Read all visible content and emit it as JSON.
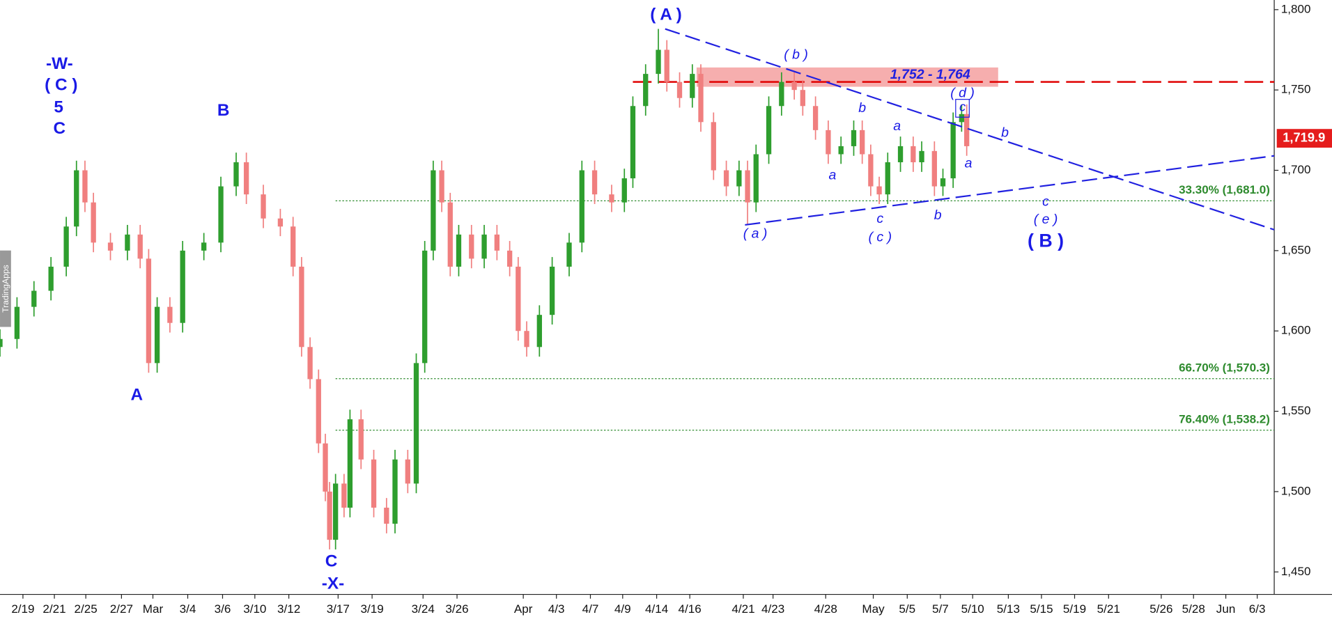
{
  "chart_data": {
    "type": "candlestick",
    "watermark": "TradingApps",
    "up_color": "#2e9e2e",
    "down_color": "#f07f7f",
    "x": [
      0,
      2,
      4,
      6,
      7.8,
      9,
      10,
      11,
      13,
      15,
      16.5,
      17.5,
      18.5,
      20,
      21.5,
      24,
      26,
      27.8,
      29,
      31,
      33,
      34.5,
      35.5,
      36.5,
      37.5,
      38.3,
      38.8,
      39.5,
      40.5,
      41.2,
      42.5,
      44,
      45.5,
      46.5,
      48,
      49,
      50,
      51,
      52,
      53,
      54,
      55.5,
      57,
      58.5,
      60,
      61,
      62,
      63.5,
      65,
      67,
      68.5,
      70,
      72,
      73.5,
      74.5,
      76,
      77.5,
      78.5,
      80,
      81.5,
      82.5,
      84,
      85.5,
      87,
      88,
      89,
      90.5,
      92,
      93.5,
      94.5,
      96,
      97.5,
      99,
      100.5,
      101.5,
      102.5,
      103.5,
      104.5,
      106,
      107.5,
      108.5,
      110,
      111,
      112.2,
      113.2,
      113.8
    ],
    "open": [
      1590,
      1595,
      1615,
      1625,
      1640,
      1665,
      1700,
      1680,
      1655,
      1650,
      1660,
      1645,
      1580,
      1615,
      1605,
      1650,
      1655,
      1690,
      1705,
      1685,
      1670,
      1665,
      1640,
      1590,
      1570,
      1530,
      1500,
      1470,
      1505,
      1490,
      1545,
      1520,
      1490,
      1480,
      1520,
      1505,
      1580,
      1650,
      1700,
      1680,
      1640,
      1660,
      1645,
      1660,
      1650,
      1640,
      1600,
      1590,
      1610,
      1640,
      1655,
      1700,
      1685,
      1680,
      1695,
      1740,
      1760,
      1775,
      1755,
      1745,
      1760,
      1730,
      1700,
      1690,
      1700,
      1680,
      1710,
      1740,
      1755,
      1750,
      1740,
      1725,
      1710,
      1715,
      1725,
      1710,
      1690,
      1685,
      1705,
      1715,
      1705,
      1712,
      1690,
      1695,
      1730,
      1735
    ],
    "high": [
      1601,
      1621,
      1631,
      1646,
      1671,
      1706,
      1706,
      1686,
      1661,
      1666,
      1666,
      1651,
      1621,
      1621,
      1656,
      1661,
      1696,
      1711,
      1711,
      1691,
      1676,
      1671,
      1646,
      1596,
      1576,
      1536,
      1506,
      1511,
      1511,
      1551,
      1551,
      1526,
      1496,
      1526,
      1526,
      1586,
      1656,
      1706,
      1706,
      1686,
      1666,
      1666,
      1666,
      1666,
      1656,
      1646,
      1606,
      1616,
      1646,
      1661,
      1706,
      1706,
      1691,
      1701,
      1746,
      1766,
      1788,
      1781,
      1761,
      1766,
      1766,
      1736,
      1706,
      1706,
      1706,
      1716,
      1746,
      1761,
      1761,
      1756,
      1746,
      1731,
      1721,
      1731,
      1731,
      1716,
      1696,
      1711,
      1721,
      1721,
      1718,
      1718,
      1701,
      1736,
      1741,
      1741
    ],
    "low": [
      1584,
      1589,
      1609,
      1619,
      1634,
      1659,
      1674,
      1649,
      1644,
      1644,
      1639,
      1574,
      1574,
      1599,
      1599,
      1644,
      1649,
      1684,
      1679,
      1664,
      1659,
      1634,
      1584,
      1564,
      1524,
      1494,
      1464,
      1464,
      1484,
      1484,
      1514,
      1484,
      1474,
      1474,
      1499,
      1499,
      1574,
      1644,
      1674,
      1634,
      1634,
      1639,
      1639,
      1644,
      1634,
      1594,
      1584,
      1584,
      1604,
      1634,
      1649,
      1679,
      1674,
      1674,
      1689,
      1734,
      1754,
      1749,
      1739,
      1739,
      1724,
      1694,
      1684,
      1684,
      1666,
      1674,
      1704,
      1734,
      1744,
      1734,
      1719,
      1704,
      1704,
      1709,
      1704,
      1684,
      1679,
      1679,
      1699,
      1699,
      1699,
      1684,
      1684,
      1689,
      1724,
      1709
    ],
    "close": [
      1595,
      1615,
      1625,
      1640,
      1665,
      1700,
      1680,
      1655,
      1650,
      1660,
      1645,
      1580,
      1615,
      1605,
      1650,
      1655,
      1690,
      1705,
      1685,
      1670,
      1665,
      1640,
      1590,
      1570,
      1530,
      1500,
      1470,
      1505,
      1490,
      1545,
      1520,
      1490,
      1480,
      1520,
      1505,
      1580,
      1650,
      1700,
      1680,
      1640,
      1660,
      1645,
      1660,
      1650,
      1640,
      1600,
      1590,
      1610,
      1640,
      1655,
      1700,
      1685,
      1680,
      1695,
      1740,
      1760,
      1775,
      1755,
      1745,
      1760,
      1730,
      1700,
      1690,
      1700,
      1680,
      1710,
      1740,
      1755,
      1750,
      1740,
      1725,
      1710,
      1715,
      1725,
      1710,
      1690,
      1685,
      1705,
      1715,
      1705,
      1712,
      1690,
      1695,
      1730,
      1735,
      1715
    ],
    "xlim": [
      0,
      150
    ],
    "xticks": [
      {
        "value": 2.7,
        "label": "2/19"
      },
      {
        "value": 6.4,
        "label": "2/21"
      },
      {
        "value": 10.1,
        "label": "2/25"
      },
      {
        "value": 14.3,
        "label": "2/27"
      },
      {
        "value": 18,
        "label": "Mar"
      },
      {
        "value": 22.1,
        "label": "3/4"
      },
      {
        "value": 26.2,
        "label": "3/6"
      },
      {
        "value": 30,
        "label": "3/10"
      },
      {
        "value": 34,
        "label": "3/12"
      },
      {
        "value": 39.8,
        "label": "3/17"
      },
      {
        "value": 43.8,
        "label": "3/19"
      },
      {
        "value": 49.8,
        "label": "3/24"
      },
      {
        "value": 53.8,
        "label": "3/26"
      },
      {
        "value": 61.6,
        "label": "Apr"
      },
      {
        "value": 65.5,
        "label": "4/3"
      },
      {
        "value": 69.5,
        "label": "4/7"
      },
      {
        "value": 73.3,
        "label": "4/9"
      },
      {
        "value": 77.3,
        "label": "4/14"
      },
      {
        "value": 81.2,
        "label": "4/16"
      },
      {
        "value": 87.5,
        "label": "4/21"
      },
      {
        "value": 91,
        "label": "4/23"
      },
      {
        "value": 97.2,
        "label": "4/28"
      },
      {
        "value": 102.8,
        "label": "May"
      },
      {
        "value": 106.8,
        "label": "5/5"
      },
      {
        "value": 110.7,
        "label": "5/7"
      },
      {
        "value": 114.5,
        "label": "5/10"
      },
      {
        "value": 118.7,
        "label": "5/13"
      },
      {
        "value": 122.6,
        "label": "5/15"
      },
      {
        "value": 126.5,
        "label": "5/19"
      },
      {
        "value": 130.5,
        "label": "5/21"
      },
      {
        "value": 136.7,
        "label": "5/26"
      },
      {
        "value": 140.5,
        "label": "5/28"
      },
      {
        "value": 144.3,
        "label": "Jun"
      },
      {
        "value": 148,
        "label": "6/3"
      }
    ],
    "ylim": [
      1436,
      1806
    ],
    "yticks": [
      {
        "value": 1450,
        "label": "1,450"
      },
      {
        "value": 1500,
        "label": "1,500"
      },
      {
        "value": 1550,
        "label": "1,550"
      },
      {
        "value": 1600,
        "label": "1,600"
      },
      {
        "value": 1650,
        "label": "1,650"
      },
      {
        "value": 1700,
        "label": "1,700"
      },
      {
        "value": 1750,
        "label": "1,750"
      },
      {
        "value": 1800,
        "label": "1,800"
      }
    ],
    "levels": [
      {
        "value": 1681.0,
        "label": "33.30% (1,681.0)"
      },
      {
        "value": 1570.3,
        "label": "66.70% (1,570.3)"
      },
      {
        "value": 1538.2,
        "label": "76.40% (1,538.2)"
      }
    ],
    "resistance": 1755,
    "zone": {
      "low": 1752,
      "high": 1764,
      "label": "1,752 - 1,764"
    },
    "trendlines": [
      {
        "x": [
          78.3,
          150
        ],
        "y": [
          1788,
          1663
        ]
      },
      {
        "x": [
          87.7,
          150
        ],
        "y": [
          1666,
          1709
        ]
      }
    ],
    "last": {
      "value": 1719.9,
      "label": "1,719.9"
    },
    "annotations": [
      "-W-",
      "( C )",
      "5",
      "C",
      "B",
      "A",
      "C",
      "-X-",
      "( A )",
      "( b )",
      "( d )",
      "c",
      "b",
      "a",
      "b",
      "a",
      "a",
      "( a )",
      "c",
      "( c )",
      "b",
      "c",
      "( e )",
      "( B )"
    ]
  }
}
